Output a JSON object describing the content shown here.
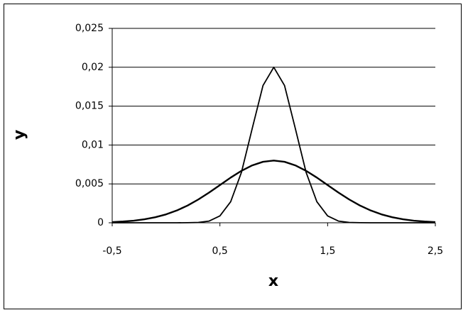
{
  "chart_data": {
    "type": "line",
    "x_label": "x",
    "y_label": "y",
    "x": [
      -0.5,
      -0.4,
      -0.3,
      -0.2,
      -0.1,
      0,
      0.1,
      0.2,
      0.3,
      0.4,
      0.5,
      0.6,
      0.7,
      0.8,
      0.9,
      1,
      1.1,
      1.2,
      1.3,
      1.4,
      1.5,
      1.6,
      1.7,
      1.8,
      1.9,
      2,
      2.1,
      2.2,
      2.3,
      2.4,
      2.5
    ],
    "series": [
      {
        "color": "#000000",
        "values": [
          0,
          0,
          0,
          0,
          0,
          0,
          0,
          1e-05,
          4e-05,
          0.00022,
          0.00088,
          0.00271,
          0.00649,
          0.01213,
          0.01765,
          0.02,
          0.01765,
          0.01213,
          0.00649,
          0.00271,
          0.00088,
          0.00022,
          4e-05,
          1e-05,
          0,
          0,
          0,
          0,
          0,
          0,
          0
        ]
      },
      {
        "color": "#000000",
        "values": [
          9e-05,
          0.00016,
          0.00027,
          0.00045,
          0.00071,
          0.00108,
          0.00158,
          0.00222,
          0.003,
          0.00389,
          0.00485,
          0.00581,
          0.00668,
          0.00738,
          0.00784,
          0.008,
          0.00784,
          0.00738,
          0.00668,
          0.00581,
          0.00485,
          0.00389,
          0.003,
          0.00222,
          0.00158,
          0.00108,
          0.00071,
          0.00045,
          0.00027,
          0.00016,
          9e-05
        ]
      }
    ],
    "xlim": [
      -0.5,
      2.5
    ],
    "xticks": [
      {
        "value": -0.5,
        "label": "-0,5"
      },
      {
        "value": 0.5,
        "label": "0,5"
      },
      {
        "value": 1.5,
        "label": "1,5"
      },
      {
        "value": 2.5,
        "label": "2,5"
      }
    ],
    "ylim": [
      0,
      0.025
    ],
    "yticks": [
      0,
      {
        "value": 0.005,
        "label": "0,005"
      },
      {
        "value": 0.01,
        "label": "0,01"
      },
      {
        "value": 0.015,
        "label": "0,015"
      },
      {
        "value": 0.02,
        "label": "0,02"
      },
      {
        "value": 0.025,
        "label": "0,025"
      }
    ],
    "grid": true
  }
}
